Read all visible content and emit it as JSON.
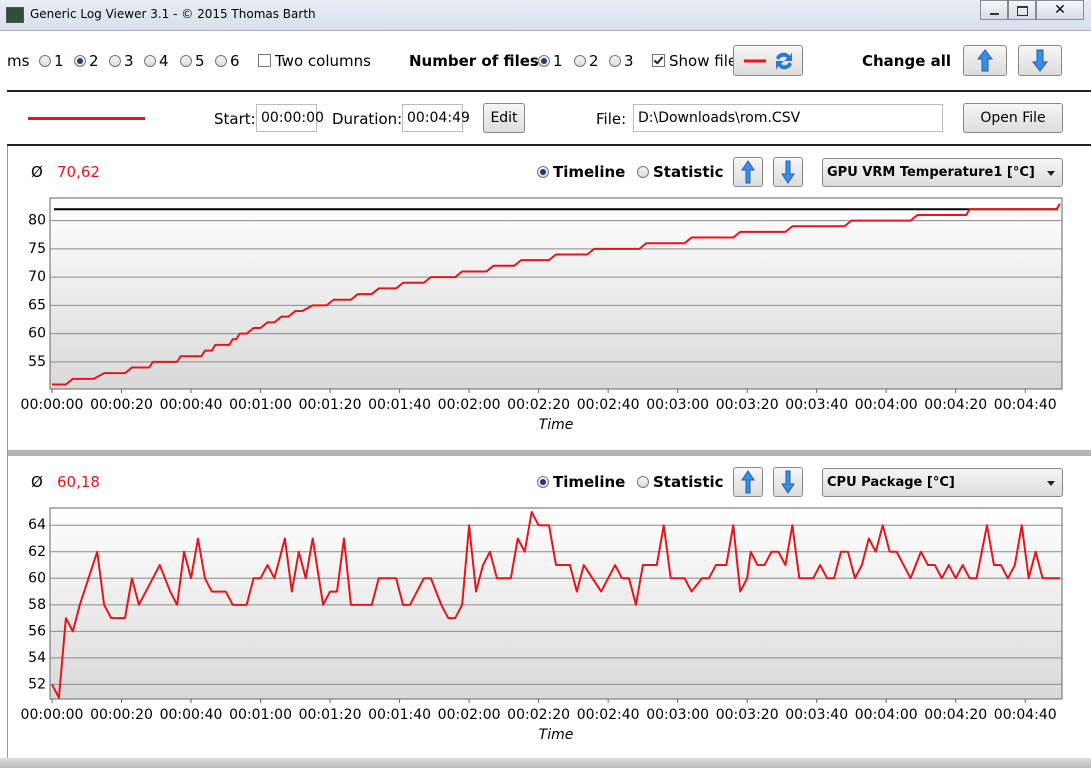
{
  "window": {
    "title": "Generic Log Viewer 3.1 - © 2015 Thomas Barth"
  },
  "toolbar": {
    "diagrams_label": "ms",
    "diagram_options": [
      "1",
      "2",
      "3",
      "4",
      "5",
      "6"
    ],
    "two_columns": "Two columns",
    "files_label": "Number of files",
    "file_options": [
      "1",
      "2",
      "3"
    ],
    "show_file": "Show file",
    "change_all": "Change all"
  },
  "file_row": {
    "start_label": "Start:",
    "start": "00:00:00",
    "duration_label": "Duration:",
    "duration": "00:04:49",
    "edit": "Edit",
    "file_label": "File:",
    "file": "D:\\Downloads\\rom.CSV",
    "open_file": "Open File"
  },
  "chart_data": [
    {
      "type": "line",
      "average_symbol": "Ø",
      "average": "70,62",
      "view_options": [
        "Timeline",
        "Statistic"
      ],
      "sensor": "GPU VRM Temperature1 [°C]",
      "xlabel": "Time",
      "color": "#e8141b",
      "reference_line": 82,
      "reference_color": "#000000",
      "x": [
        0,
        4,
        6,
        12,
        15,
        21,
        23,
        28,
        29,
        36,
        37,
        43,
        44,
        46,
        47,
        51,
        52,
        53,
        54,
        56,
        58,
        60,
        62,
        64,
        66,
        68,
        70,
        72,
        75,
        79,
        81,
        86,
        88,
        92,
        94,
        99,
        101,
        107,
        109,
        116,
        118,
        125,
        127,
        133,
        135,
        143,
        145,
        154,
        156,
        169,
        171,
        182,
        184,
        196,
        198,
        211,
        213,
        228,
        230,
        247,
        249,
        263,
        264,
        289,
        290
      ],
      "values": [
        51,
        51,
        52,
        52,
        53,
        53,
        54,
        54,
        55,
        55,
        56,
        56,
        57,
        57,
        58,
        58,
        59,
        59,
        60,
        60,
        61,
        61,
        62,
        62,
        63,
        63,
        64,
        64,
        65,
        65,
        66,
        66,
        67,
        67,
        68,
        68,
        69,
        69,
        70,
        70,
        71,
        71,
        72,
        72,
        73,
        73,
        74,
        74,
        75,
        75,
        76,
        76,
        77,
        77,
        78,
        78,
        79,
        79,
        80,
        80,
        81,
        81,
        82,
        82,
        83
      ],
      "xlim": [
        0,
        290
      ],
      "ylim": [
        50.2,
        84
      ],
      "yticks": [
        55,
        60,
        65,
        70,
        75,
        80
      ],
      "xticks": [
        {
          "value": 0,
          "label": "00:00:00"
        },
        {
          "value": 20,
          "label": "00:00:20"
        },
        {
          "value": 40,
          "label": "00:00:40"
        },
        {
          "value": 60,
          "label": "00:01:00"
        },
        {
          "value": 80,
          "label": "00:01:20"
        },
        {
          "value": 100,
          "label": "00:01:40"
        },
        {
          "value": 120,
          "label": "00:02:00"
        },
        {
          "value": 140,
          "label": "00:02:20"
        },
        {
          "value": 160,
          "label": "00:02:40"
        },
        {
          "value": 180,
          "label": "00:03:00"
        },
        {
          "value": 200,
          "label": "00:03:20"
        },
        {
          "value": 220,
          "label": "00:03:40"
        },
        {
          "value": 240,
          "label": "00:04:00"
        },
        {
          "value": 260,
          "label": "00:04:20"
        },
        {
          "value": 280,
          "label": "00:04:40"
        }
      ]
    },
    {
      "type": "line",
      "average_symbol": "Ø",
      "average": "60,18",
      "view_options": [
        "Timeline",
        "Statistic"
      ],
      "sensor": "CPU Package [°C]",
      "xlabel": "Time",
      "color": "#e8141b",
      "x": [
        0,
        2,
        4,
        6,
        8,
        13,
        15,
        17,
        21,
        23,
        25,
        31,
        34,
        36,
        38,
        40,
        42,
        44,
        46,
        50,
        52,
        56,
        58,
        60,
        62,
        64,
        67,
        69,
        71,
        73,
        75,
        78,
        80,
        82,
        84,
        86,
        92,
        94,
        99,
        101,
        103,
        107,
        109,
        112,
        114,
        116,
        118,
        120,
        122,
        124,
        126,
        128,
        132,
        134,
        136,
        138,
        140,
        143,
        145,
        149,
        151,
        153,
        158,
        162,
        164,
        166,
        168,
        170,
        174,
        176,
        178,
        182,
        184,
        187,
        189,
        191,
        194,
        196,
        198,
        200,
        201,
        203,
        205,
        207,
        209,
        211,
        213,
        215,
        219,
        221,
        223,
        225,
        227,
        229,
        231,
        233,
        235,
        237,
        239,
        241,
        243,
        245,
        247,
        250,
        252,
        254,
        256,
        258,
        260,
        262,
        264,
        266,
        269,
        271,
        273,
        275,
        277,
        279,
        281,
        283,
        285,
        290
      ],
      "values": [
        52,
        51,
        57,
        56,
        58,
        62,
        58,
        57,
        57,
        60,
        58,
        61,
        59,
        58,
        62,
        60,
        63,
        60,
        59,
        59,
        58,
        58,
        60,
        60,
        61,
        60,
        63,
        59,
        62,
        60,
        63,
        58,
        59,
        59,
        63,
        58,
        58,
        60,
        60,
        58,
        58,
        60,
        60,
        58,
        57,
        57,
        58,
        64,
        59,
        61,
        62,
        60,
        60,
        63,
        62,
        65,
        64,
        64,
        61,
        61,
        59,
        61,
        59,
        61,
        60,
        60,
        58,
        61,
        61,
        64,
        60,
        60,
        59,
        60,
        60,
        61,
        61,
        64,
        59,
        60,
        62,
        61,
        61,
        62,
        62,
        61,
        64,
        60,
        60,
        61,
        60,
        60,
        62,
        62,
        60,
        61,
        63,
        62,
        64,
        62,
        62,
        61,
        60,
        62,
        61,
        61,
        60,
        61,
        60,
        61,
        60,
        60,
        64,
        61,
        61,
        60,
        61,
        64,
        60,
        62,
        60,
        60
      ],
      "xlim": [
        0,
        290
      ],
      "ylim": [
        50.9,
        65.3
      ],
      "yticks": [
        52,
        54,
        56,
        58,
        60,
        62,
        64
      ],
      "xticks": [
        {
          "value": 0,
          "label": "00:00:00"
        },
        {
          "value": 20,
          "label": "00:00:20"
        },
        {
          "value": 40,
          "label": "00:00:40"
        },
        {
          "value": 60,
          "label": "00:01:00"
        },
        {
          "value": 80,
          "label": "00:01:20"
        },
        {
          "value": 100,
          "label": "00:01:40"
        },
        {
          "value": 120,
          "label": "00:02:00"
        },
        {
          "value": 140,
          "label": "00:02:20"
        },
        {
          "value": 160,
          "label": "00:02:40"
        },
        {
          "value": 180,
          "label": "00:03:00"
        },
        {
          "value": 200,
          "label": "00:03:20"
        },
        {
          "value": 220,
          "label": "00:03:40"
        },
        {
          "value": 240,
          "label": "00:04:00"
        },
        {
          "value": 260,
          "label": "00:04:20"
        },
        {
          "value": 280,
          "label": "00:04:40"
        }
      ]
    }
  ]
}
